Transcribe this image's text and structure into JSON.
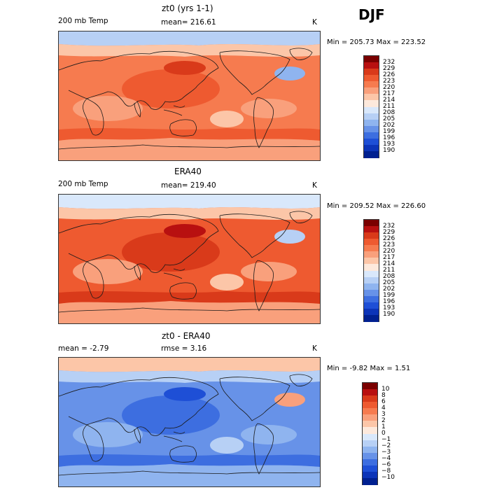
{
  "season": "DJF",
  "panels": [
    {
      "title": "zt0 (yrs 1-1)",
      "left_label": "200 mb Temp",
      "center_label": "mean= 216.61",
      "units": "K",
      "minmax": "Min = 205.73 Max = 223.52",
      "colorbar": {
        "labels": [
          "232",
          "229",
          "226",
          "223",
          "220",
          "217",
          "214",
          "211",
          "208",
          "205",
          "202",
          "199",
          "196",
          "193",
          "190"
        ],
        "colors": [
          "#7a0000",
          "#b81010",
          "#d93a1a",
          "#ee5a30",
          "#f67b4f",
          "#f9a07c",
          "#fcc6a8",
          "#fde9dc",
          "#d9e8fb",
          "#b7d0f5",
          "#8fb4ef",
          "#6792e8",
          "#3d6ee0",
          "#1e4fd6",
          "#0c34b8",
          "#002090"
        ]
      },
      "map_palette": {
        "dom": "#f67b4f",
        "warm": "#ee5a30",
        "hot": "#d93a1a",
        "light": "#f9a07c",
        "pale": "#fcc6a8",
        "cool": "#b7d0f5",
        "cold": "#8fb4ef"
      }
    },
    {
      "title": "ERA40",
      "left_label": "200 mb Temp",
      "center_label": "mean= 219.40",
      "units": "K",
      "minmax": "Min = 209.52 Max = 226.60",
      "colorbar": {
        "labels": [
          "232",
          "229",
          "226",
          "223",
          "220",
          "217",
          "214",
          "211",
          "208",
          "205",
          "202",
          "199",
          "196",
          "193",
          "190"
        ],
        "colors": [
          "#7a0000",
          "#b81010",
          "#d93a1a",
          "#ee5a30",
          "#f67b4f",
          "#f9a07c",
          "#fcc6a8",
          "#fde9dc",
          "#d9e8fb",
          "#b7d0f5",
          "#8fb4ef",
          "#6792e8",
          "#3d6ee0",
          "#1e4fd6",
          "#0c34b8",
          "#002090"
        ]
      },
      "map_palette": {
        "dom": "#ee5a30",
        "warm": "#d93a1a",
        "hot": "#b81010",
        "light": "#f9a07c",
        "pale": "#fcc6a8",
        "cool": "#d9e8fb",
        "cold": "#b7d0f5"
      }
    },
    {
      "title": "zt0 - ERA40",
      "left_label": "mean =   -2.79",
      "center_label": "rmse =    3.16",
      "units": "K",
      "minmax": "Min =  -9.82 Max =   1.51",
      "colorbar": {
        "labels": [
          "10",
          "8",
          "6",
          "4",
          "3",
          "2",
          "1",
          "0",
          "−1",
          "−2",
          "−3",
          "−4",
          "−6",
          "−8",
          "−10"
        ],
        "colors": [
          "#7a0000",
          "#b81010",
          "#d93a1a",
          "#ee5a30",
          "#f67b4f",
          "#f9a07c",
          "#fcc6a8",
          "#fde9dc",
          "#d9e8fb",
          "#b7d0f5",
          "#8fb4ef",
          "#6792e8",
          "#3d6ee0",
          "#1e4fd6",
          "#0c34b8",
          "#002090"
        ]
      },
      "map_palette": {
        "dom": "#6792e8",
        "warm": "#3d6ee0",
        "hot": "#1e4fd6",
        "light": "#8fb4ef",
        "pale": "#b7d0f5",
        "cool": "#fcc6a8",
        "cold": "#f9a07c"
      }
    }
  ]
}
